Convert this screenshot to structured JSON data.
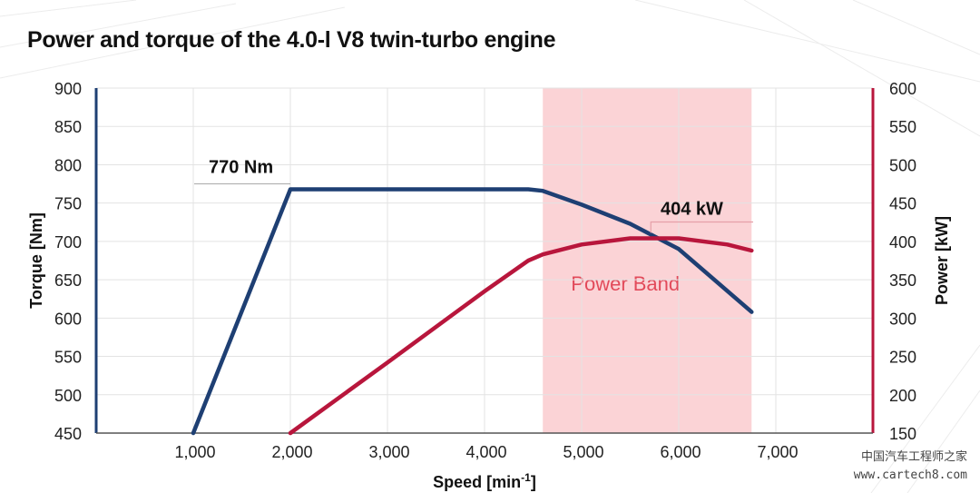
{
  "chart_data": {
    "type": "line",
    "title": "Power and torque of the 4.0-l V8 twin-turbo engine",
    "xlabel": "Speed [min",
    "xlabel_sup": "-1",
    "xlabel_suffix": "]",
    "ylabel": "Torque [Nm]",
    "y2label": "Power [kW]",
    "xlim": [
      0,
      8000
    ],
    "ylim": [
      450,
      900
    ],
    "y2lim": [
      150,
      600
    ],
    "xticks": [
      1000,
      2000,
      3000,
      4000,
      5000,
      6000,
      7000
    ],
    "xtick_labels": [
      "1,000",
      "2,000",
      "3,000",
      "4,000",
      "5,000",
      "6,000",
      "7,000"
    ],
    "yticks": [
      450,
      500,
      550,
      600,
      650,
      700,
      750,
      800,
      850,
      900
    ],
    "ytick_labels": [
      "450",
      "500",
      "550",
      "600",
      "650",
      "700",
      "750",
      "800",
      "850",
      "900"
    ],
    "y2ticks": [
      150,
      200,
      250,
      300,
      350,
      400,
      450,
      500,
      550,
      600
    ],
    "y2tick_labels": [
      "150",
      "200",
      "250",
      "300",
      "350",
      "400",
      "450",
      "500",
      "550",
      "600"
    ],
    "grid": true,
    "power_band": {
      "x": [
        4600,
        6750
      ],
      "label": "Power Band"
    },
    "series": [
      {
        "axis": "left",
        "color": "#1e3f73",
        "points": [
          [
            1000,
            450
          ],
          [
            2000,
            768
          ],
          [
            4450,
            768
          ],
          [
            4600,
            766
          ],
          [
            5000,
            748
          ],
          [
            5500,
            723
          ],
          [
            6000,
            690
          ],
          [
            6750,
            608
          ]
        ]
      },
      {
        "axis": "right",
        "color": "#b8163c",
        "points": [
          [
            2000,
            150
          ],
          [
            3000,
            242
          ],
          [
            4000,
            335
          ],
          [
            4450,
            375
          ],
          [
            4600,
            383
          ],
          [
            5000,
            396
          ],
          [
            5500,
            404
          ],
          [
            6000,
            404
          ],
          [
            6500,
            396
          ],
          [
            6750,
            388
          ]
        ]
      }
    ],
    "annotations": [
      {
        "text": "770 Nm",
        "x": 2000,
        "y": 768,
        "axis": "left"
      },
      {
        "text": "404 kW",
        "x": 5750,
        "y": 404,
        "axis": "right"
      }
    ]
  },
  "colors": {
    "torque": "#1e3f73",
    "power": "#b8163c",
    "band": "#fbd3d6",
    "band_text": "#e24a5a",
    "grid": "#e3e3e3"
  },
  "watermark": {
    "line1": "中国汽车工程师之家",
    "line2": "www.cartech8.com"
  }
}
